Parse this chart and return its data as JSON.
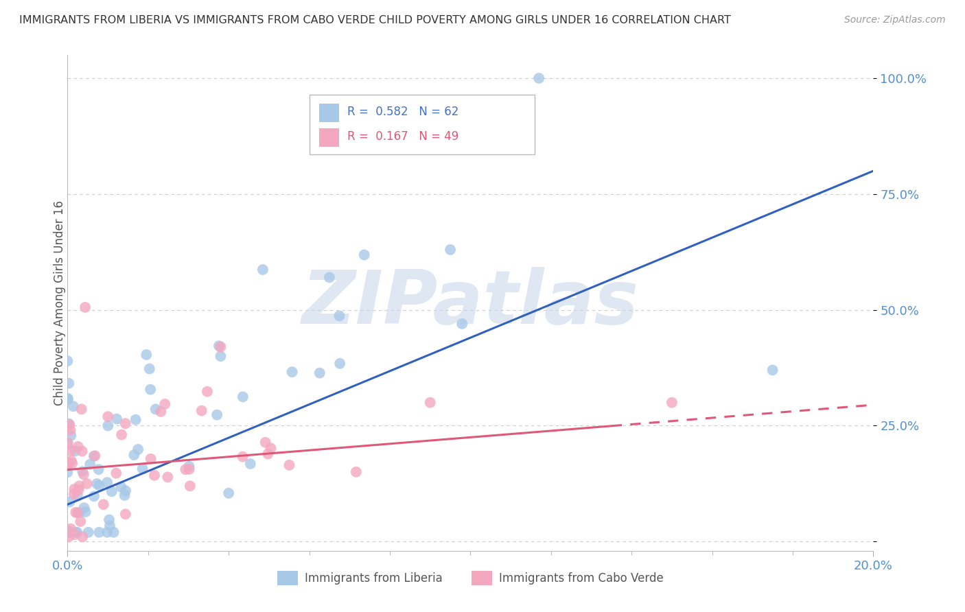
{
  "title": "IMMIGRANTS FROM LIBERIA VS IMMIGRANTS FROM CABO VERDE CHILD POVERTY AMONG GIRLS UNDER 16 CORRELATION CHART",
  "source": "Source: ZipAtlas.com",
  "ylabel": "Child Poverty Among Girls Under 16",
  "xlabel": "",
  "xlim": [
    0.0,
    0.2
  ],
  "ylim": [
    -0.02,
    1.05
  ],
  "ytick_vals": [
    0.0,
    0.25,
    0.5,
    0.75,
    1.0
  ],
  "ytick_labels": [
    "",
    "25.0%",
    "50.0%",
    "75.0%",
    "100.0%"
  ],
  "xtick_vals": [
    0.0,
    0.2
  ],
  "xtick_labels": [
    "0.0%",
    "20.0%"
  ],
  "color_liberia": "#a8c8e8",
  "color_caboverde": "#f4a8c0",
  "trendline_liberia_color": "#3060c0",
  "trendline_caboverde_color": "#e05878",
  "watermark": "ZIPatlas",
  "background_color": "#ffffff",
  "grid_color": "#cccccc",
  "R_liberia": 0.582,
  "N_liberia": 62,
  "R_caboverde": 0.167,
  "N_caboverde": 49
}
